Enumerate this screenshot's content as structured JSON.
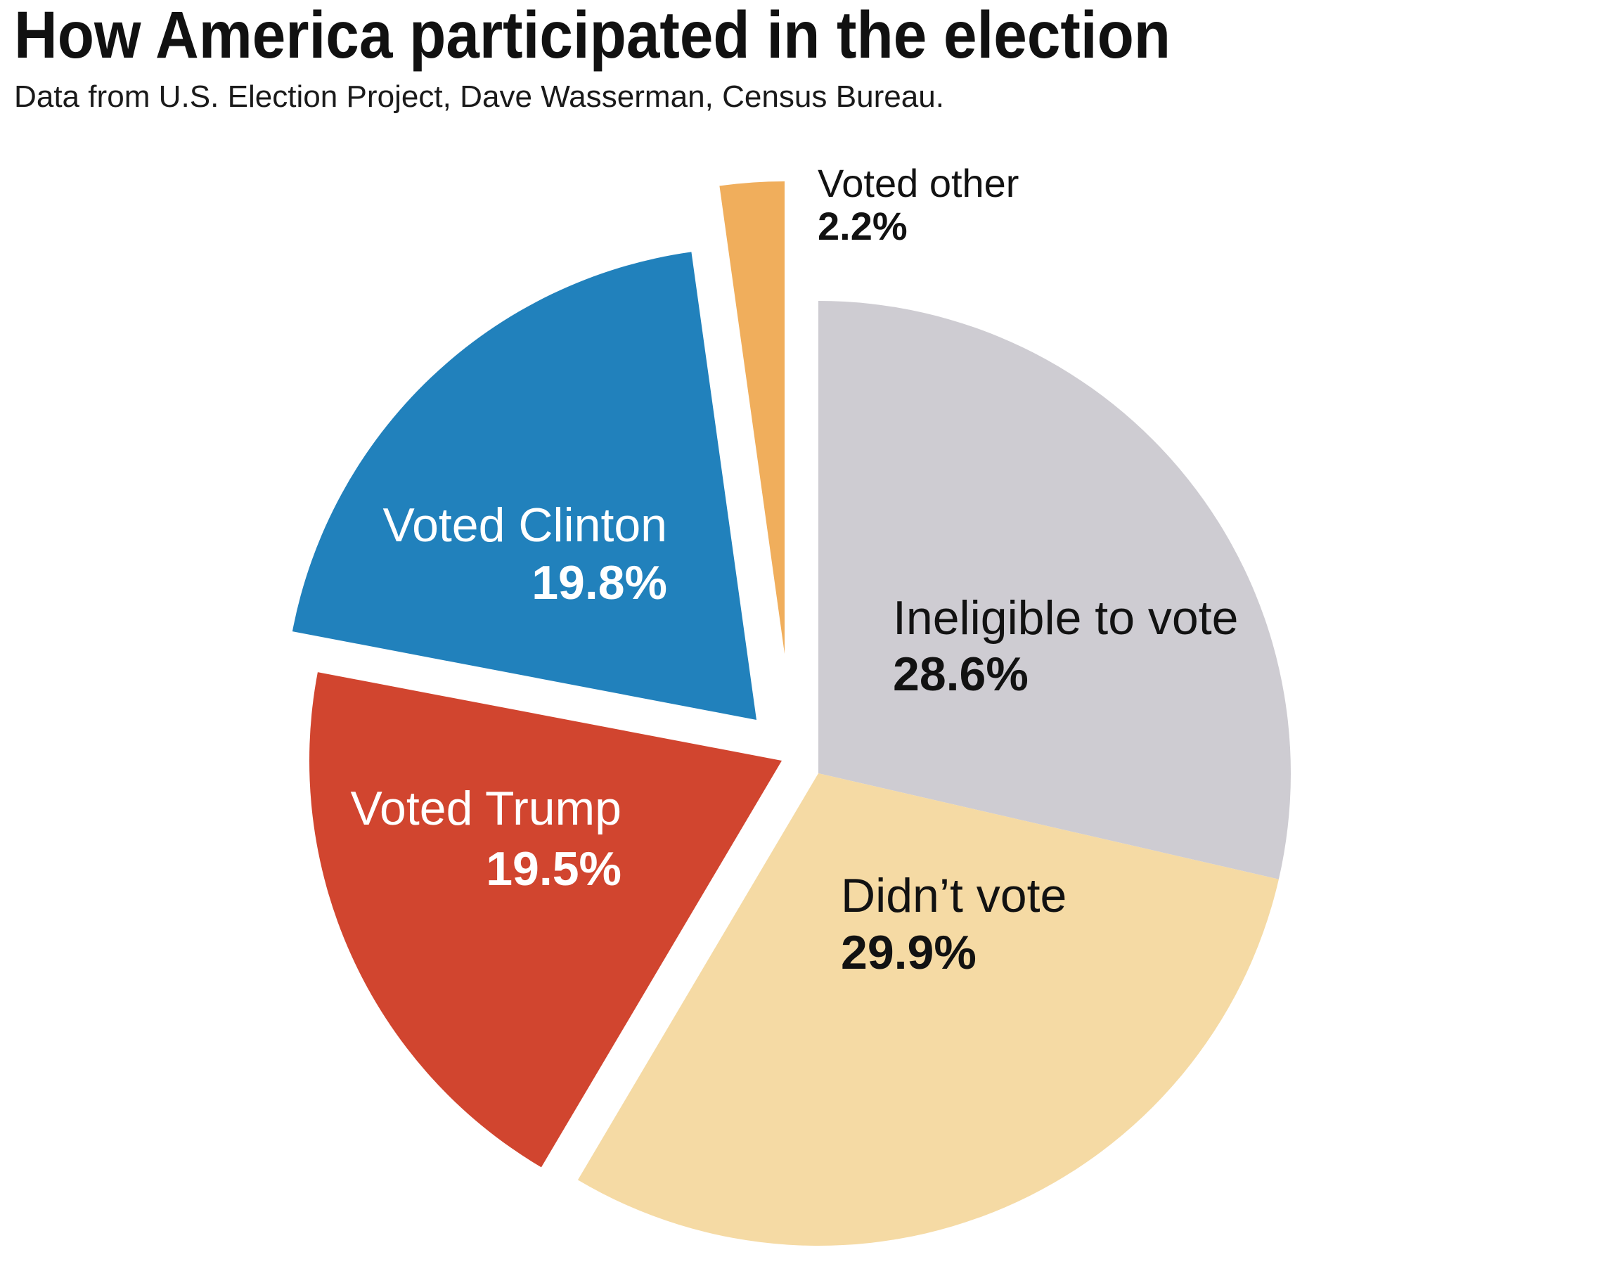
{
  "header": {
    "title": "How America participated in the election",
    "subtitle": "Data from U.S. Election Project, Dave Wasserman, Census Bureau."
  },
  "chart_data": {
    "type": "pie",
    "title": "How America participated in the election",
    "start_angle_deg": 0,
    "direction": "clockwise",
    "background": "#FFFFFF",
    "slices": [
      {
        "label": "Ineligible to vote",
        "value": 28.6,
        "pct_label": "28.6%",
        "color": "#CECCD2",
        "label_color": "#121212",
        "exploded": false
      },
      {
        "label": "Didn’t vote",
        "value": 29.9,
        "pct_label": "29.9%",
        "color": "#F5DAA4",
        "label_color": "#121212",
        "exploded": false
      },
      {
        "label": "Voted Trump",
        "value": 19.5,
        "pct_label": "19.5%",
        "color": "#D1452F",
        "label_color": "#FFFFFF",
        "exploded": true
      },
      {
        "label": "Voted Clinton",
        "value": 19.8,
        "pct_label": "19.8%",
        "color": "#2181BC",
        "label_color": "#FFFFFF",
        "exploded": true
      },
      {
        "label": "Voted other",
        "value": 2.2,
        "pct_label": "2.2%",
        "color": "#F0AE5C",
        "label_color": "#121212",
        "exploded": true
      }
    ]
  }
}
